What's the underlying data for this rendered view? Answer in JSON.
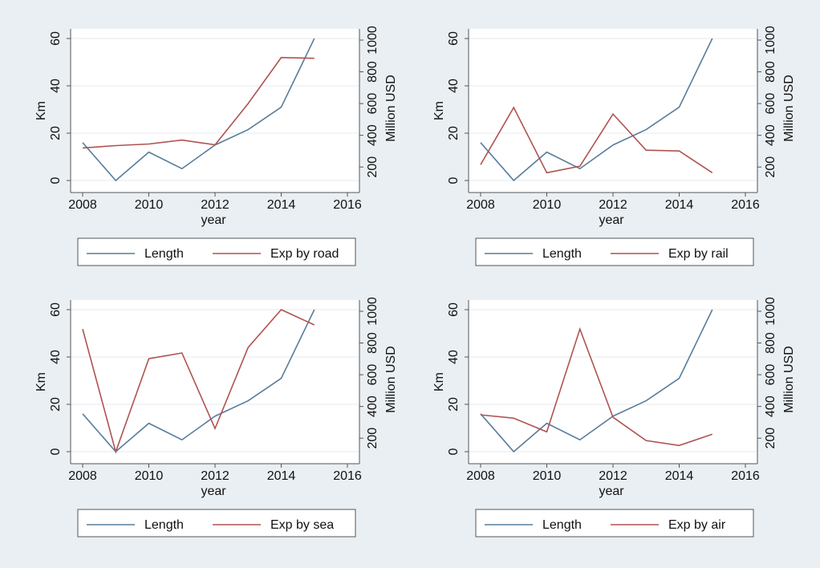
{
  "chart_data": [
    {
      "type": "line",
      "x": [
        2008,
        2009,
        2010,
        2011,
        2012,
        2013,
        2014,
        2015
      ],
      "xlabel": "year",
      "ylabel": "Km",
      "y2label": "Million USD",
      "xlim": [
        2008,
        2016
      ],
      "xticks": [
        2008,
        2010,
        2012,
        2014,
        2016
      ],
      "ylim": [
        0,
        60
      ],
      "yticks": [
        0,
        20,
        40,
        60
      ],
      "y2lim": [
        115,
        1010
      ],
      "y2ticks": [
        200,
        400,
        600,
        800,
        1000
      ],
      "grid": true,
      "series": [
        {
          "name": "Length",
          "color": "#587d9c",
          "axis": "y",
          "values": [
            16,
            0,
            12,
            5,
            15,
            21.5,
            31,
            60
          ]
        },
        {
          "name": "Exp by road",
          "color": "#b05250",
          "axis": "y2",
          "values": [
            320,
            335,
            345,
            370,
            340,
            600,
            890,
            885
          ]
        }
      ]
    },
    {
      "type": "line",
      "x": [
        2008,
        2009,
        2010,
        2011,
        2012,
        2013,
        2014,
        2015
      ],
      "xlabel": "year",
      "ylabel": "Km",
      "y2label": "Million USD",
      "xlim": [
        2008,
        2016
      ],
      "xticks": [
        2008,
        2010,
        2012,
        2014,
        2016
      ],
      "ylim": [
        0,
        60
      ],
      "yticks": [
        0,
        20,
        40,
        60
      ],
      "y2lim": [
        115,
        1010
      ],
      "y2ticks": [
        200,
        400,
        600,
        800,
        1000
      ],
      "grid": true,
      "series": [
        {
          "name": "Length",
          "color": "#587d9c",
          "axis": "y",
          "values": [
            16,
            0,
            12,
            5,
            15,
            21.5,
            31,
            60
          ]
        },
        {
          "name": "Exp by rail",
          "color": "#b05250",
          "axis": "y2",
          "values": [
            215,
            575,
            164,
            205,
            534,
            306,
            301,
            164
          ]
        }
      ]
    },
    {
      "type": "line",
      "x": [
        2008,
        2009,
        2010,
        2011,
        2012,
        2013,
        2014,
        2015
      ],
      "xlabel": "year",
      "ylabel": "Km",
      "y2label": "Million USD",
      "xlim": [
        2008,
        2016
      ],
      "xticks": [
        2008,
        2010,
        2012,
        2014,
        2016
      ],
      "ylim": [
        0,
        60
      ],
      "yticks": [
        0,
        20,
        40,
        60
      ],
      "y2lim": [
        115,
        1010
      ],
      "y2ticks": [
        200,
        400,
        600,
        800,
        1000
      ],
      "grid": true,
      "series": [
        {
          "name": "Length",
          "color": "#587d9c",
          "axis": "y",
          "values": [
            16,
            0,
            12,
            5,
            15,
            21.5,
            31,
            60
          ]
        },
        {
          "name": "Exp by sea",
          "color": "#b05250",
          "axis": "y2",
          "values": [
            888,
            114,
            701,
            737,
            261,
            772,
            1010,
            914
          ]
        }
      ]
    },
    {
      "type": "line",
      "x": [
        2008,
        2009,
        2010,
        2011,
        2012,
        2013,
        2014,
        2015
      ],
      "xlabel": "year",
      "ylabel": "Km",
      "y2label": "Million USD",
      "xlim": [
        2008,
        2016
      ],
      "xticks": [
        2008,
        2010,
        2012,
        2014,
        2016
      ],
      "ylim": [
        0,
        60
      ],
      "yticks": [
        0,
        20,
        40,
        60
      ],
      "y2lim": [
        115,
        1010
      ],
      "y2ticks": [
        200,
        400,
        600,
        800,
        1000
      ],
      "grid": true,
      "series": [
        {
          "name": "Length",
          "color": "#587d9c",
          "axis": "y",
          "values": [
            16,
            0,
            12,
            5,
            15,
            21.5,
            31,
            60
          ]
        },
        {
          "name": "Exp by air",
          "color": "#b05250",
          "axis": "y2",
          "values": [
            347,
            326,
            240,
            888,
            332,
            185,
            154,
            225
          ]
        }
      ]
    }
  ]
}
